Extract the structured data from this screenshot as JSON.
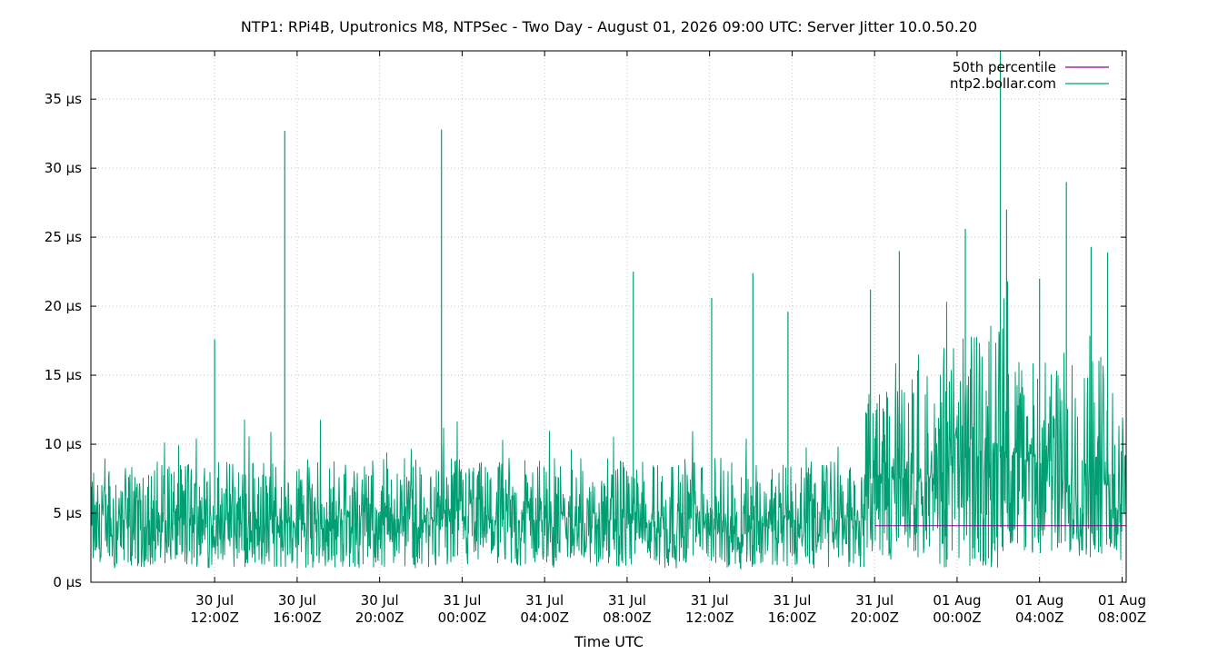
{
  "chart_data": {
    "type": "line",
    "title": "NTP1: RPi4B, Uputronics M8, NTPSec - Two Day - August 01, 2026 09:00 UTC: Server Jitter 10.0.50.20",
    "xlabel": "Time UTC",
    "ylabel": "",
    "x_range_hours": [
      -48.0,
      0.0
    ],
    "ylim": [
      0,
      38.5
    ],
    "grid": true,
    "legend_position": "top-right",
    "y_ticks": [
      {
        "value": 0,
        "label": "0 µs"
      },
      {
        "value": 5,
        "label": "5 µs"
      },
      {
        "value": 10,
        "label": "10 µs"
      },
      {
        "value": 15,
        "label": "15 µs"
      },
      {
        "value": 20,
        "label": "20 µs"
      },
      {
        "value": 25,
        "label": "25 µs"
      },
      {
        "value": 30,
        "label": "30 µs"
      },
      {
        "value": 35,
        "label": "35 µs"
      }
    ],
    "x_ticks": [
      {
        "hours": -42,
        "line1": "30 Jul",
        "line2": "12:00Z"
      },
      {
        "hours": -38,
        "line1": "30 Jul",
        "line2": "16:00Z"
      },
      {
        "hours": -34,
        "line1": "30 Jul",
        "line2": "20:00Z"
      },
      {
        "hours": -30,
        "line1": "31 Jul",
        "line2": "00:00Z"
      },
      {
        "hours": -26,
        "line1": "31 Jul",
        "line2": "04:00Z"
      },
      {
        "hours": -22,
        "line1": "31 Jul",
        "line2": "08:00Z"
      },
      {
        "hours": -18,
        "line1": "31 Jul",
        "line2": "12:00Z"
      },
      {
        "hours": -14,
        "line1": "31 Jul",
        "line2": "16:00Z"
      },
      {
        "hours": -10,
        "line1": "31 Jul",
        "line2": "20:00Z"
      },
      {
        "hours": -6,
        "line1": "01 Aug",
        "line2": "00:00Z"
      },
      {
        "hours": -2,
        "line1": "01 Aug",
        "line2": "04:00Z"
      },
      {
        "hours": 2,
        "line1": "01 Aug",
        "line2": "08:00Z"
      }
    ],
    "series": [
      {
        "name": "50th percentile",
        "color": "#8b008b",
        "kind": "horizontal-line",
        "value": 4.1,
        "visible_from_hours": -10.0
      },
      {
        "name": "ntp2.bollar.com",
        "color": "#009e73",
        "kind": "noisy-line",
        "segments": [
          {
            "from_hours": -48.0,
            "to_hours": -10.5,
            "typical_low_us": 1.0,
            "typical_high_us": 9.0,
            "center_us": 4.5
          },
          {
            "from_hours": -10.5,
            "to_hours": -7.0,
            "typical_low_us": 1.5,
            "typical_high_us": 14.0,
            "center_us": 7.5
          },
          {
            "from_hours": -7.0,
            "to_hours": -3.5,
            "typical_low_us": 1.0,
            "typical_high_us": 19.0,
            "center_us": 9.0
          },
          {
            "from_hours": -3.5,
            "to_hours": -1.5,
            "typical_low_us": 2.0,
            "typical_high_us": 16.0,
            "center_us": 9.0
          },
          {
            "from_hours": -1.5,
            "to_hours": 2.0,
            "typical_low_us": 1.5,
            "typical_high_us": 17.0,
            "center_us": 7.0
          }
        ],
        "spikes": [
          {
            "hours": -42.0,
            "value": 17.6
          },
          {
            "hours": -38.6,
            "value": 32.7
          },
          {
            "hours": -31.0,
            "value": 32.8
          },
          {
            "hours": -21.7,
            "value": 22.5
          },
          {
            "hours": -17.9,
            "value": 20.6
          },
          {
            "hours": -15.9,
            "value": 22.4
          },
          {
            "hours": -14.2,
            "value": 19.6
          },
          {
            "hours": -10.2,
            "value": 21.2
          },
          {
            "hours": -8.8,
            "value": 24.0
          },
          {
            "hours": -5.6,
            "value": 25.6
          },
          {
            "hours": -3.9,
            "value": 38.5
          },
          {
            "hours": -3.6,
            "value": 27.0
          },
          {
            "hours": -2.0,
            "value": 22.0
          },
          {
            "hours": -0.7,
            "value": 29.0
          },
          {
            "hours": 0.5,
            "value": 24.3
          },
          {
            "hours": 1.3,
            "value": 23.9
          }
        ]
      }
    ]
  }
}
